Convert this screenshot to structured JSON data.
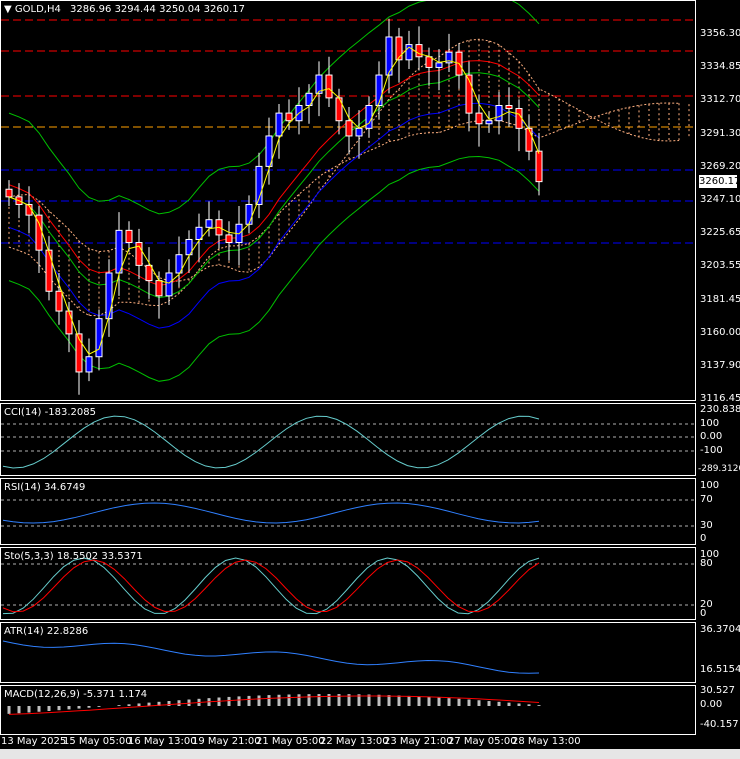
{
  "header": {
    "symbol": "GOLD,H4",
    "ohlc": "3286.96 3294.44 3250.04 3260.17",
    "current_price": "3260.17"
  },
  "price_axis": [
    "3356.30",
    "3334.85",
    "3312.70",
    "3291.30",
    "3269.20",
    "3247.10",
    "3225.65",
    "3203.55",
    "3181.45",
    "3160.00",
    "3137.90",
    "3116.45"
  ],
  "indicators": {
    "cci": {
      "label": "CCI(14) -183.2085",
      "axis": [
        "230.838",
        "100",
        "0.00",
        "-100",
        "-289.3120"
      ]
    },
    "rsi": {
      "label": "RSI(14) 34.6749",
      "axis": [
        "100",
        "70",
        "30",
        "0"
      ]
    },
    "sto": {
      "label": "Sto(5,3,3) 18.5502 33.5371",
      "axis": [
        "100",
        "80",
        "20",
        "0"
      ]
    },
    "atr": {
      "label": "ATR(14) 22.8286",
      "axis": [
        "36.3704",
        "16.5154"
      ]
    },
    "macd": {
      "label": "MACD(12,26,9) -5.371 1.174",
      "axis": [
        "30.527",
        "0.00",
        "-40.157"
      ]
    }
  },
  "time_axis": [
    "13 May 2025",
    "15 May 05:00",
    "16 May 13:00",
    "19 May 21:00",
    "21 May 05:00",
    "22 May 13:00",
    "23 May 21:00",
    "27 May 05:00",
    "28 May 13:00"
  ],
  "colors": {
    "bull": "#0000ff",
    "bear": "#ff0000",
    "ma": "#ffff00",
    "bb": "#00c000",
    "ichimoku": "#ffb080",
    "level_red": "#ff0000",
    "level_blue": "#0000ff",
    "level_orange": "#ffa000"
  },
  "chart_data": {
    "type": "candlestick",
    "symbol": "GOLD",
    "timeframe": "H4",
    "close_series": [
      3250,
      3245,
      3238,
      3215,
      3188,
      3175,
      3160,
      3135,
      3145,
      3170,
      3200,
      3228,
      3220,
      3205,
      3195,
      3185,
      3200,
      3212,
      3222,
      3230,
      3235,
      3225,
      3220,
      3232,
      3245,
      3270,
      3290,
      3305,
      3300,
      3310,
      3318,
      3330,
      3315,
      3300,
      3290,
      3295,
      3310,
      3330,
      3355,
      3340,
      3350,
      3342,
      3335,
      3338,
      3345,
      3330,
      3305,
      3298,
      3300,
      3310,
      3308,
      3295,
      3280,
      3260
    ]
  }
}
